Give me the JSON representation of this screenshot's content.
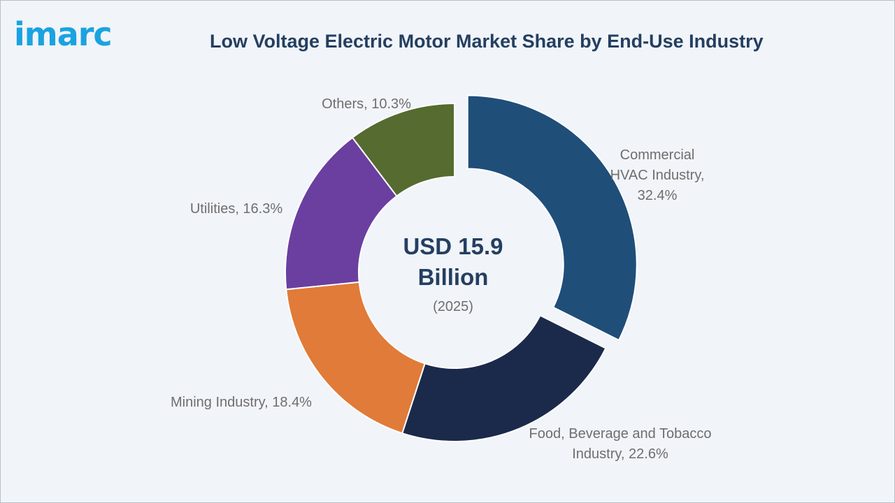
{
  "logo": "imarc",
  "chart_data": {
    "type": "pie",
    "variant": "donut",
    "title": "Low Voltage Electric Motor Market Share by End-Use Industry",
    "unit": "%",
    "center": {
      "value_line1": "USD 15.9",
      "value_line2": "Billion",
      "year": "(2025)"
    },
    "slices": [
      {
        "name": "Commercial HVAC Industry",
        "label_lines": [
          "Commercial",
          "HVAC Industry,",
          "32.4%"
        ],
        "value": 32.4,
        "color": "#1f4e79",
        "exploded": true
      },
      {
        "name": "Food, Beverage and Tobacco Industry",
        "label_lines": [
          "Food, Beverage and Tobacco",
          "Industry, 22.6%"
        ],
        "value": 22.6,
        "color": "#1b2a4a",
        "exploded": false
      },
      {
        "name": "Mining Industry",
        "label_lines": [
          "Mining Industry, 18.4%"
        ],
        "value": 18.4,
        "color": "#e07b39",
        "exploded": false
      },
      {
        "name": "Utilities",
        "label_lines": [
          "Utilities, 16.3%"
        ],
        "value": 16.3,
        "color": "#6a3fa0",
        "exploded": false
      },
      {
        "name": "Others",
        "label_lines": [
          "Others, 10.3%"
        ],
        "value": 10.3,
        "color": "#556b2f",
        "exploded": false
      }
    ]
  }
}
